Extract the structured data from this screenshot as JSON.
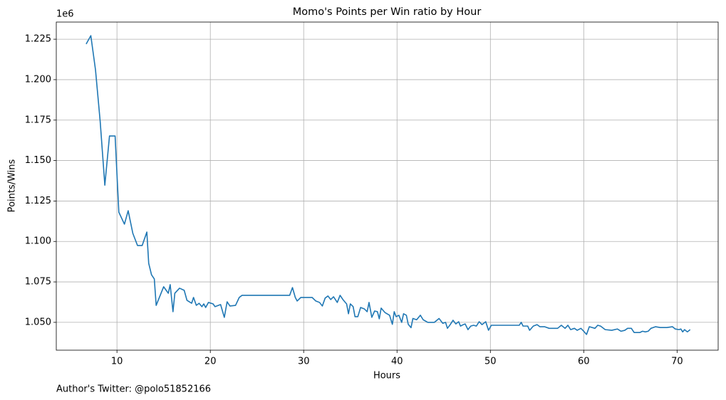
{
  "chart_data": {
    "type": "line",
    "title": "Momo's Points per Win ratio by Hour",
    "x_label": "Hours",
    "y_label": "Points/Wins",
    "y_offset_label": "1e6",
    "footnote": "Author's Twitter: @polo51852166",
    "color": "#1f77b4",
    "grid": true,
    "xlim": [
      3.5,
      74.4
    ],
    "ylim": [
      1032800,
      1235600
    ],
    "xticks": [
      10,
      20,
      30,
      40,
      50,
      60,
      70
    ],
    "yticks": [
      {
        "value": 1050000,
        "label": "1.050"
      },
      {
        "value": 1075000,
        "label": "1.075"
      },
      {
        "value": 1100000,
        "label": "1.100"
      },
      {
        "value": 1125000,
        "label": "1.125"
      },
      {
        "value": 1150000,
        "label": "1.150"
      },
      {
        "value": 1175000,
        "label": "1.175"
      },
      {
        "value": 1200000,
        "label": "1.200"
      },
      {
        "value": 1225000,
        "label": "1.225"
      }
    ],
    "x": [
      6.7,
      7.2,
      7.7,
      8.2,
      8.7,
      9.2,
      9.8,
      10.2,
      10.8,
      11.2,
      11.7,
      12.2,
      12.7,
      13.2,
      13.4,
      13.7,
      14.0,
      14.2,
      15.0,
      15.5,
      15.7,
      16.0,
      16.2,
      16.7,
      17.2,
      17.5,
      18.0,
      18.2,
      18.5,
      18.8,
      19.1,
      19.3,
      19.5,
      19.8,
      20.3,
      20.5,
      21.1,
      21.5,
      21.8,
      22.1,
      22.7,
      23.1,
      23.4,
      28.5,
      28.8,
      29.1,
      29.3,
      29.7,
      30.9,
      31.3,
      31.7,
      32.0,
      32.3,
      32.6,
      32.9,
      33.2,
      33.6,
      33.9,
      34.2,
      34.6,
      34.8,
      35.0,
      35.3,
      35.5,
      35.8,
      36.1,
      36.5,
      36.8,
      37.0,
      37.3,
      37.6,
      37.9,
      38.1,
      38.3,
      38.7,
      39.2,
      39.5,
      39.7,
      39.9,
      40.2,
      40.5,
      40.7,
      41.0,
      41.2,
      41.5,
      41.7,
      42.1,
      42.5,
      42.8,
      43.3,
      44.0,
      44.5,
      44.9,
      45.2,
      45.4,
      45.7,
      46.0,
      46.3,
      46.6,
      46.8,
      47.1,
      47.3,
      47.6,
      47.9,
      48.2,
      48.5,
      48.8,
      49.1,
      49.5,
      49.8,
      50.1,
      53.1,
      53.3,
      53.5,
      54.0,
      54.2,
      54.6,
      55.0,
      55.3,
      55.8,
      56.3,
      57.2,
      57.6,
      58.0,
      58.3,
      58.6,
      59.0,
      59.3,
      59.7,
      60.0,
      60.3,
      60.6,
      61.2,
      61.5,
      61.8,
      62.3,
      63.0,
      63.6,
      64.0,
      64.4,
      64.7,
      65.1,
      65.4,
      66.0,
      66.3,
      66.6,
      66.9,
      67.2,
      67.7,
      68.2,
      68.9,
      69.5,
      69.8,
      70.2,
      70.4,
      70.6,
      70.8,
      71.1,
      71.4
    ],
    "values": [
      1222000,
      1227200,
      1206100,
      1174400,
      1134800,
      1165200,
      1165200,
      1118100,
      1110700,
      1119000,
      1105000,
      1097500,
      1097500,
      1105800,
      1086500,
      1079400,
      1076800,
      1060500,
      1072000,
      1068000,
      1073300,
      1056600,
      1068000,
      1071100,
      1069800,
      1063600,
      1061800,
      1065400,
      1060500,
      1061800,
      1059700,
      1061400,
      1059200,
      1062300,
      1061400,
      1059700,
      1061000,
      1053100,
      1062700,
      1060100,
      1060500,
      1065400,
      1066700,
      1066700,
      1071500,
      1065400,
      1063200,
      1065400,
      1065400,
      1063200,
      1062300,
      1060100,
      1065000,
      1066300,
      1064100,
      1065800,
      1062300,
      1066700,
      1064100,
      1061400,
      1055300,
      1061400,
      1059700,
      1053500,
      1053500,
      1059200,
      1058300,
      1056600,
      1062300,
      1053100,
      1057000,
      1056600,
      1052200,
      1058800,
      1056100,
      1054400,
      1048800,
      1056600,
      1053500,
      1054400,
      1050000,
      1055300,
      1054400,
      1048800,
      1046700,
      1052400,
      1051600,
      1054400,
      1051600,
      1050000,
      1050000,
      1052400,
      1049400,
      1050000,
      1046300,
      1048600,
      1051300,
      1049000,
      1050400,
      1047700,
      1048600,
      1049000,
      1045500,
      1047700,
      1048200,
      1047700,
      1050400,
      1048600,
      1050400,
      1045100,
      1048200,
      1048200,
      1050000,
      1047700,
      1047700,
      1045100,
      1047700,
      1048600,
      1047300,
      1047300,
      1046300,
      1046300,
      1048200,
      1046300,
      1048200,
      1045500,
      1046300,
      1045100,
      1046300,
      1044500,
      1042500,
      1047300,
      1046300,
      1048200,
      1047700,
      1045500,
      1045100,
      1045900,
      1044500,
      1045100,
      1046300,
      1046300,
      1043700,
      1043700,
      1044500,
      1044100,
      1044500,
      1046300,
      1047300,
      1046800,
      1046800,
      1047300,
      1045900,
      1045500,
      1045900,
      1044100,
      1045500,
      1044100,
      1045500
    ]
  }
}
